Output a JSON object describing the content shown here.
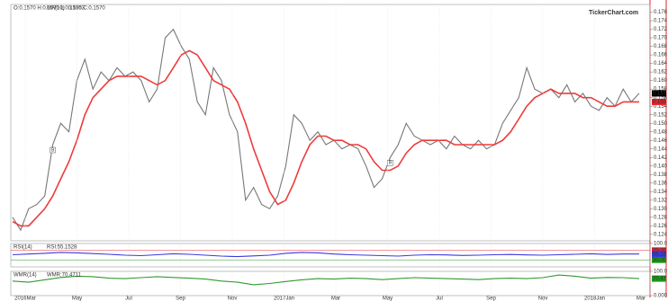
{
  "chart_data": [
    {
      "type": "line",
      "header": "O:0.1570 H:0.1570 L:0.1570 C:0.1570",
      "watermark": "TickerChart.com",
      "x_labels": [
        "2016Mar",
        "May",
        "Jul",
        "Sep",
        "Nov",
        "2017Jan",
        "Mar",
        "May",
        "Jul",
        "Sep",
        "Nov",
        "2018Jan",
        "Mar"
      ],
      "ylim": [
        0.1225,
        0.1778
      ],
      "yticks": [
        {
          "value": 0.176,
          "label": "0.176"
        },
        {
          "value": 0.174,
          "label": "0.174"
        },
        {
          "value": 0.172,
          "label": "0.172"
        },
        {
          "value": 0.17,
          "label": "0.170"
        },
        {
          "value": 0.168,
          "label": "0.168"
        },
        {
          "value": 0.166,
          "label": "0.166"
        },
        {
          "value": 0.164,
          "label": "0.164"
        },
        {
          "value": 0.162,
          "label": "0.162"
        },
        {
          "value": 0.16,
          "label": "0.160"
        },
        {
          "value": 0.158,
          "label": "0.158"
        },
        {
          "value": 0.156,
          "label": "0.156"
        },
        {
          "value": 0.154,
          "label": "0.154"
        },
        {
          "value": 0.152,
          "label": "0.152"
        },
        {
          "value": 0.15,
          "label": "0.150"
        },
        {
          "value": 0.148,
          "label": "0.148"
        },
        {
          "value": 0.146,
          "label": "0.146"
        },
        {
          "value": 0.144,
          "label": "0.144"
        },
        {
          "value": 0.142,
          "label": "0.142"
        },
        {
          "value": 0.14,
          "label": "0.140"
        },
        {
          "value": 0.138,
          "label": "0.138"
        },
        {
          "value": 0.136,
          "label": "0.136"
        },
        {
          "value": 0.134,
          "label": "0.134"
        },
        {
          "value": 0.132,
          "label": "0.132"
        },
        {
          "value": 0.13,
          "label": "0.130"
        },
        {
          "value": 0.128,
          "label": "0.128"
        },
        {
          "value": 0.126,
          "label": "0.126"
        },
        {
          "value": 0.124,
          "label": "0.124"
        }
      ],
      "annotations": [
        {
          "label": "B",
          "index": 5
        },
        {
          "label": "B",
          "index": 47
        }
      ],
      "series": [
        {
          "color": "#777777",
          "end_label": "0.157",
          "end_color": "#000000",
          "values": [
            0.128,
            0.125,
            0.13,
            0.131,
            0.133,
            0.145,
            0.15,
            0.148,
            0.16,
            0.165,
            0.158,
            0.162,
            0.16,
            0.163,
            0.161,
            0.162,
            0.16,
            0.155,
            0.158,
            0.17,
            0.172,
            0.168,
            0.165,
            0.155,
            0.152,
            0.163,
            0.16,
            0.152,
            0.148,
            0.132,
            0.135,
            0.131,
            0.13,
            0.133,
            0.14,
            0.152,
            0.15,
            0.146,
            0.148,
            0.145,
            0.146,
            0.144,
            0.145,
            0.144,
            0.14,
            0.135,
            0.137,
            0.142,
            0.145,
            0.15,
            0.147,
            0.146,
            0.145,
            0.146,
            0.144,
            0.147,
            0.145,
            0.144,
            0.146,
            0.144,
            0.145,
            0.15,
            0.153,
            0.156,
            0.163,
            0.158,
            0.157,
            0.158,
            0.156,
            0.159,
            0.155,
            0.157,
            0.154,
            0.153,
            0.156,
            0.154,
            0.158,
            0.155,
            0.157
          ]
        },
        {
          "name": "MA(10)",
          "current": "0.1553",
          "color": "#ee3b3b",
          "end_label": "0.155",
          "end_color": "#e8212a",
          "values": [
            0.127,
            0.126,
            0.126,
            0.128,
            0.13,
            0.133,
            0.137,
            0.141,
            0.146,
            0.152,
            0.156,
            0.158,
            0.16,
            0.161,
            0.161,
            0.161,
            0.161,
            0.16,
            0.159,
            0.16,
            0.163,
            0.166,
            0.167,
            0.166,
            0.163,
            0.16,
            0.159,
            0.158,
            0.155,
            0.15,
            0.144,
            0.139,
            0.134,
            0.131,
            0.132,
            0.136,
            0.141,
            0.145,
            0.147,
            0.147,
            0.146,
            0.146,
            0.145,
            0.145,
            0.144,
            0.141,
            0.139,
            0.139,
            0.14,
            0.143,
            0.145,
            0.146,
            0.146,
            0.146,
            0.146,
            0.145,
            0.145,
            0.145,
            0.145,
            0.145,
            0.145,
            0.146,
            0.148,
            0.151,
            0.154,
            0.156,
            0.157,
            0.158,
            0.157,
            0.157,
            0.157,
            0.156,
            0.156,
            0.155,
            0.154,
            0.154,
            0.155,
            0.155,
            0.155
          ]
        }
      ]
    },
    {
      "type": "line",
      "header": "RSI(14)",
      "ylim": [
        0,
        100
      ],
      "yticks": [
        {
          "value": 100,
          "label": "100.0"
        }
      ],
      "levels": [
        {
          "value": 70,
          "label": "70.0000",
          "axis_label": "70.00",
          "color": "#e8212a"
        },
        {
          "value": 30,
          "label": "30.0000",
          "axis_label": "30.00",
          "color": "#1a9a1a"
        }
      ],
      "series": [
        {
          "name": "RSI:55.1528",
          "color": "#3b3bdd",
          "end_label": "55.15",
          "end_color": "#3b3bdd",
          "values": [
            52,
            55,
            58,
            62,
            60,
            57,
            54,
            50,
            48,
            52,
            56,
            54,
            50,
            46,
            44,
            47,
            50,
            58,
            62,
            60,
            55,
            52,
            50,
            48,
            46,
            50,
            52,
            51,
            49,
            50,
            52,
            53,
            51,
            50,
            52,
            54,
            56,
            53,
            55,
            55
          ]
        }
      ]
    },
    {
      "type": "line",
      "header": "WMR(14)",
      "ylim": [
        0,
        100
      ],
      "yticks": [
        {
          "value": 100,
          "label": "100.0"
        },
        {
          "value": 0,
          "label": "0.000"
        }
      ],
      "series": [
        {
          "name": "WMR:70.4711",
          "color": "#2f9a2f",
          "end_label": "70.47",
          "end_color": "#1a9a1a",
          "values": [
            60,
            55,
            65,
            75,
            80,
            78,
            72,
            70,
            74,
            78,
            75,
            72,
            68,
            60,
            55,
            45,
            50,
            58,
            65,
            70,
            68,
            72,
            70,
            66,
            70,
            74,
            72,
            70,
            68,
            66,
            70,
            72,
            70,
            74,
            85,
            80,
            72,
            75,
            74,
            70
          ]
        }
      ]
    }
  ]
}
